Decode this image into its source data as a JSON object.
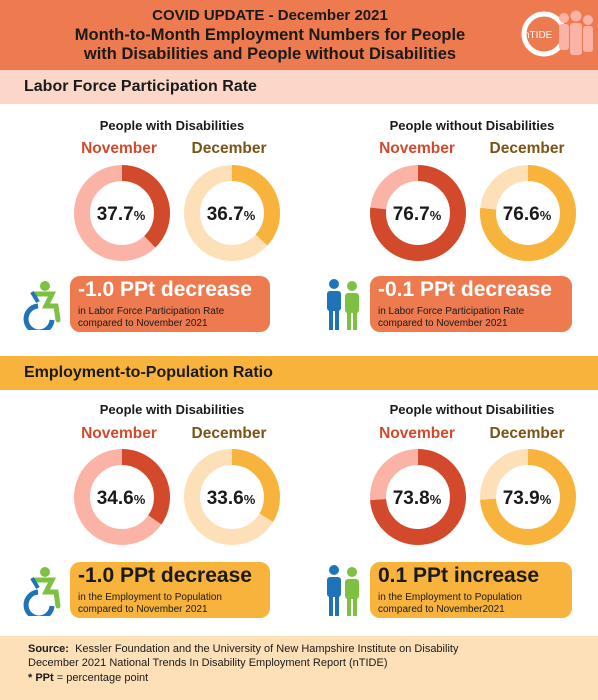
{
  "header": {
    "line1": "COVID UPDATE - December 2021",
    "line2a": "Month-to-Month Employment Numbers for People",
    "line2b": "with Disabilities and People without Disabilities",
    "logo_text": "nTIDE"
  },
  "sections": [
    {
      "title": "Labor Force Participation Rate",
      "groups": [
        {
          "name": "People with Disabilities",
          "change_main": "-1.0 PPt decrease",
          "change_sub1": "in Labor Force Participation Rate",
          "change_sub2": "compared to November 2021"
        },
        {
          "name": "People without Disabilities",
          "change_main": "-0.1 PPt decrease",
          "change_sub1": "in Labor Force Participation Rate",
          "change_sub2": "compared to November 2021"
        }
      ]
    },
    {
      "title": "Employment-to-Population Ratio",
      "groups": [
        {
          "name": "People with Disabilities",
          "change_main": "-1.0 PPt decrease",
          "change_sub1": "in the Employment to Population",
          "change_sub2": "compared to November 2021"
        },
        {
          "name": "People without Disabilities",
          "change_main": "0.1 PPt increase",
          "change_sub1": "in the Employment to Population",
          "change_sub2": "compared to November2021"
        }
      ]
    }
  ],
  "months": {
    "nov": "November",
    "dec": "December"
  },
  "chart_data": [
    {
      "type": "pie",
      "title": "Labor Force Participation Rate",
      "series": [
        {
          "name": "People with Disabilities",
          "categories": [
            "November",
            "December"
          ],
          "values": [
            37.7,
            36.7
          ]
        },
        {
          "name": "People without Disabilities",
          "categories": [
            "November",
            "December"
          ],
          "values": [
            76.7,
            76.6
          ]
        }
      ]
    },
    {
      "type": "pie",
      "title": "Employment-to-Population Ratio",
      "series": [
        {
          "name": "People with Disabilities",
          "categories": [
            "November",
            "December"
          ],
          "values": [
            34.6,
            33.6
          ]
        },
        {
          "name": "People without Disabilities",
          "categories": [
            "November",
            "December"
          ],
          "values": [
            73.8,
            73.9
          ]
        }
      ]
    }
  ],
  "labels": {
    "lfpr_pwd_nov": "37.7",
    "lfpr_pwd_dec": "36.7",
    "lfpr_pwod_nov": "76.7",
    "lfpr_pwod_dec": "76.6",
    "epr_pwd_nov": "34.6",
    "epr_pwd_dec": "33.6",
    "epr_pwod_nov": "73.8",
    "epr_pwod_dec": "73.9",
    "pct": "%"
  },
  "colors": {
    "nov_fill": "#d24a2b",
    "nov_track": "#fbb3a6",
    "dec_fill": "#f7b33b",
    "dec_track": "#fde0b7",
    "accessibility_blue": "#1f73b8",
    "accessibility_green": "#7dc142"
  },
  "source": {
    "label": "Source:",
    "text": "Kessler Foundation and the University of New Hampshire Institute on Disability",
    "line2": "December 2021 National Trends In Disability Employment Report (nTIDE)",
    "ppt_label": "* PPt",
    "ppt_def": "= percentage point"
  }
}
